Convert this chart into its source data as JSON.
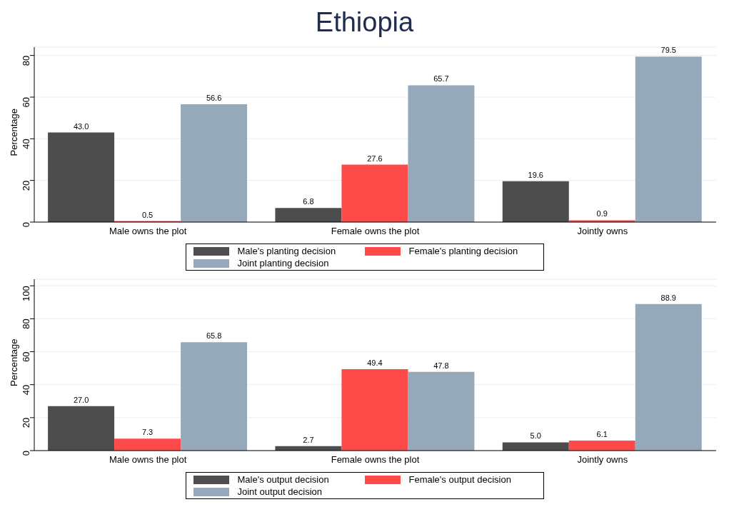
{
  "chart_data": [
    {
      "type": "bar",
      "title": "Ethiopia",
      "ylabel": "Percentage",
      "categories": [
        "Male owns the plot",
        "Female owns the plot",
        "Jointly owns"
      ],
      "series": [
        {
          "name": "Male's planting decision",
          "color": "#4d4d4d",
          "values": [
            43.0,
            6.8,
            19.6
          ],
          "value_labels": [
            "43.0",
            "6.8",
            "19.6"
          ]
        },
        {
          "name": "Female's planting decision",
          "color": "#ff4a4a",
          "values": [
            0.5,
            27.6,
            0.9
          ],
          "value_labels": [
            "0.5",
            "27.6",
            "0.9"
          ]
        },
        {
          "name": "Joint planting decision",
          "color": "#96a9ba",
          "values": [
            56.6,
            65.7,
            79.5
          ],
          "value_labels": [
            "56.6",
            "65.7",
            "79.5"
          ]
        }
      ],
      "ylim": [
        0,
        84
      ],
      "yticks": [
        0,
        20,
        40,
        60,
        80
      ],
      "grid": "y",
      "legend": "bottom"
    },
    {
      "type": "bar",
      "ylabel": "Percentage",
      "categories": [
        "Male owns the plot",
        "Female owns the plot",
        "Jointly owns"
      ],
      "series": [
        {
          "name": "Male's output decision",
          "color": "#4d4d4d",
          "values": [
            27.0,
            2.7,
            5.0
          ],
          "value_labels": [
            "27.0",
            "2.7",
            "5.0"
          ]
        },
        {
          "name": "Female's output decision",
          "color": "#ff4a4a",
          "values": [
            7.3,
            49.4,
            6.1
          ],
          "value_labels": [
            "7.3",
            "49.4",
            "6.1"
          ]
        },
        {
          "name": "Joint output decision",
          "color": "#96a9ba",
          "values": [
            65.8,
            47.8,
            88.9
          ],
          "value_labels": [
            "65.8",
            "47.8",
            "88.9"
          ]
        }
      ],
      "ylim": [
        0,
        104
      ],
      "yticks": [
        0,
        20,
        40,
        60,
        80,
        100
      ],
      "grid": "y",
      "legend": "bottom"
    }
  ]
}
